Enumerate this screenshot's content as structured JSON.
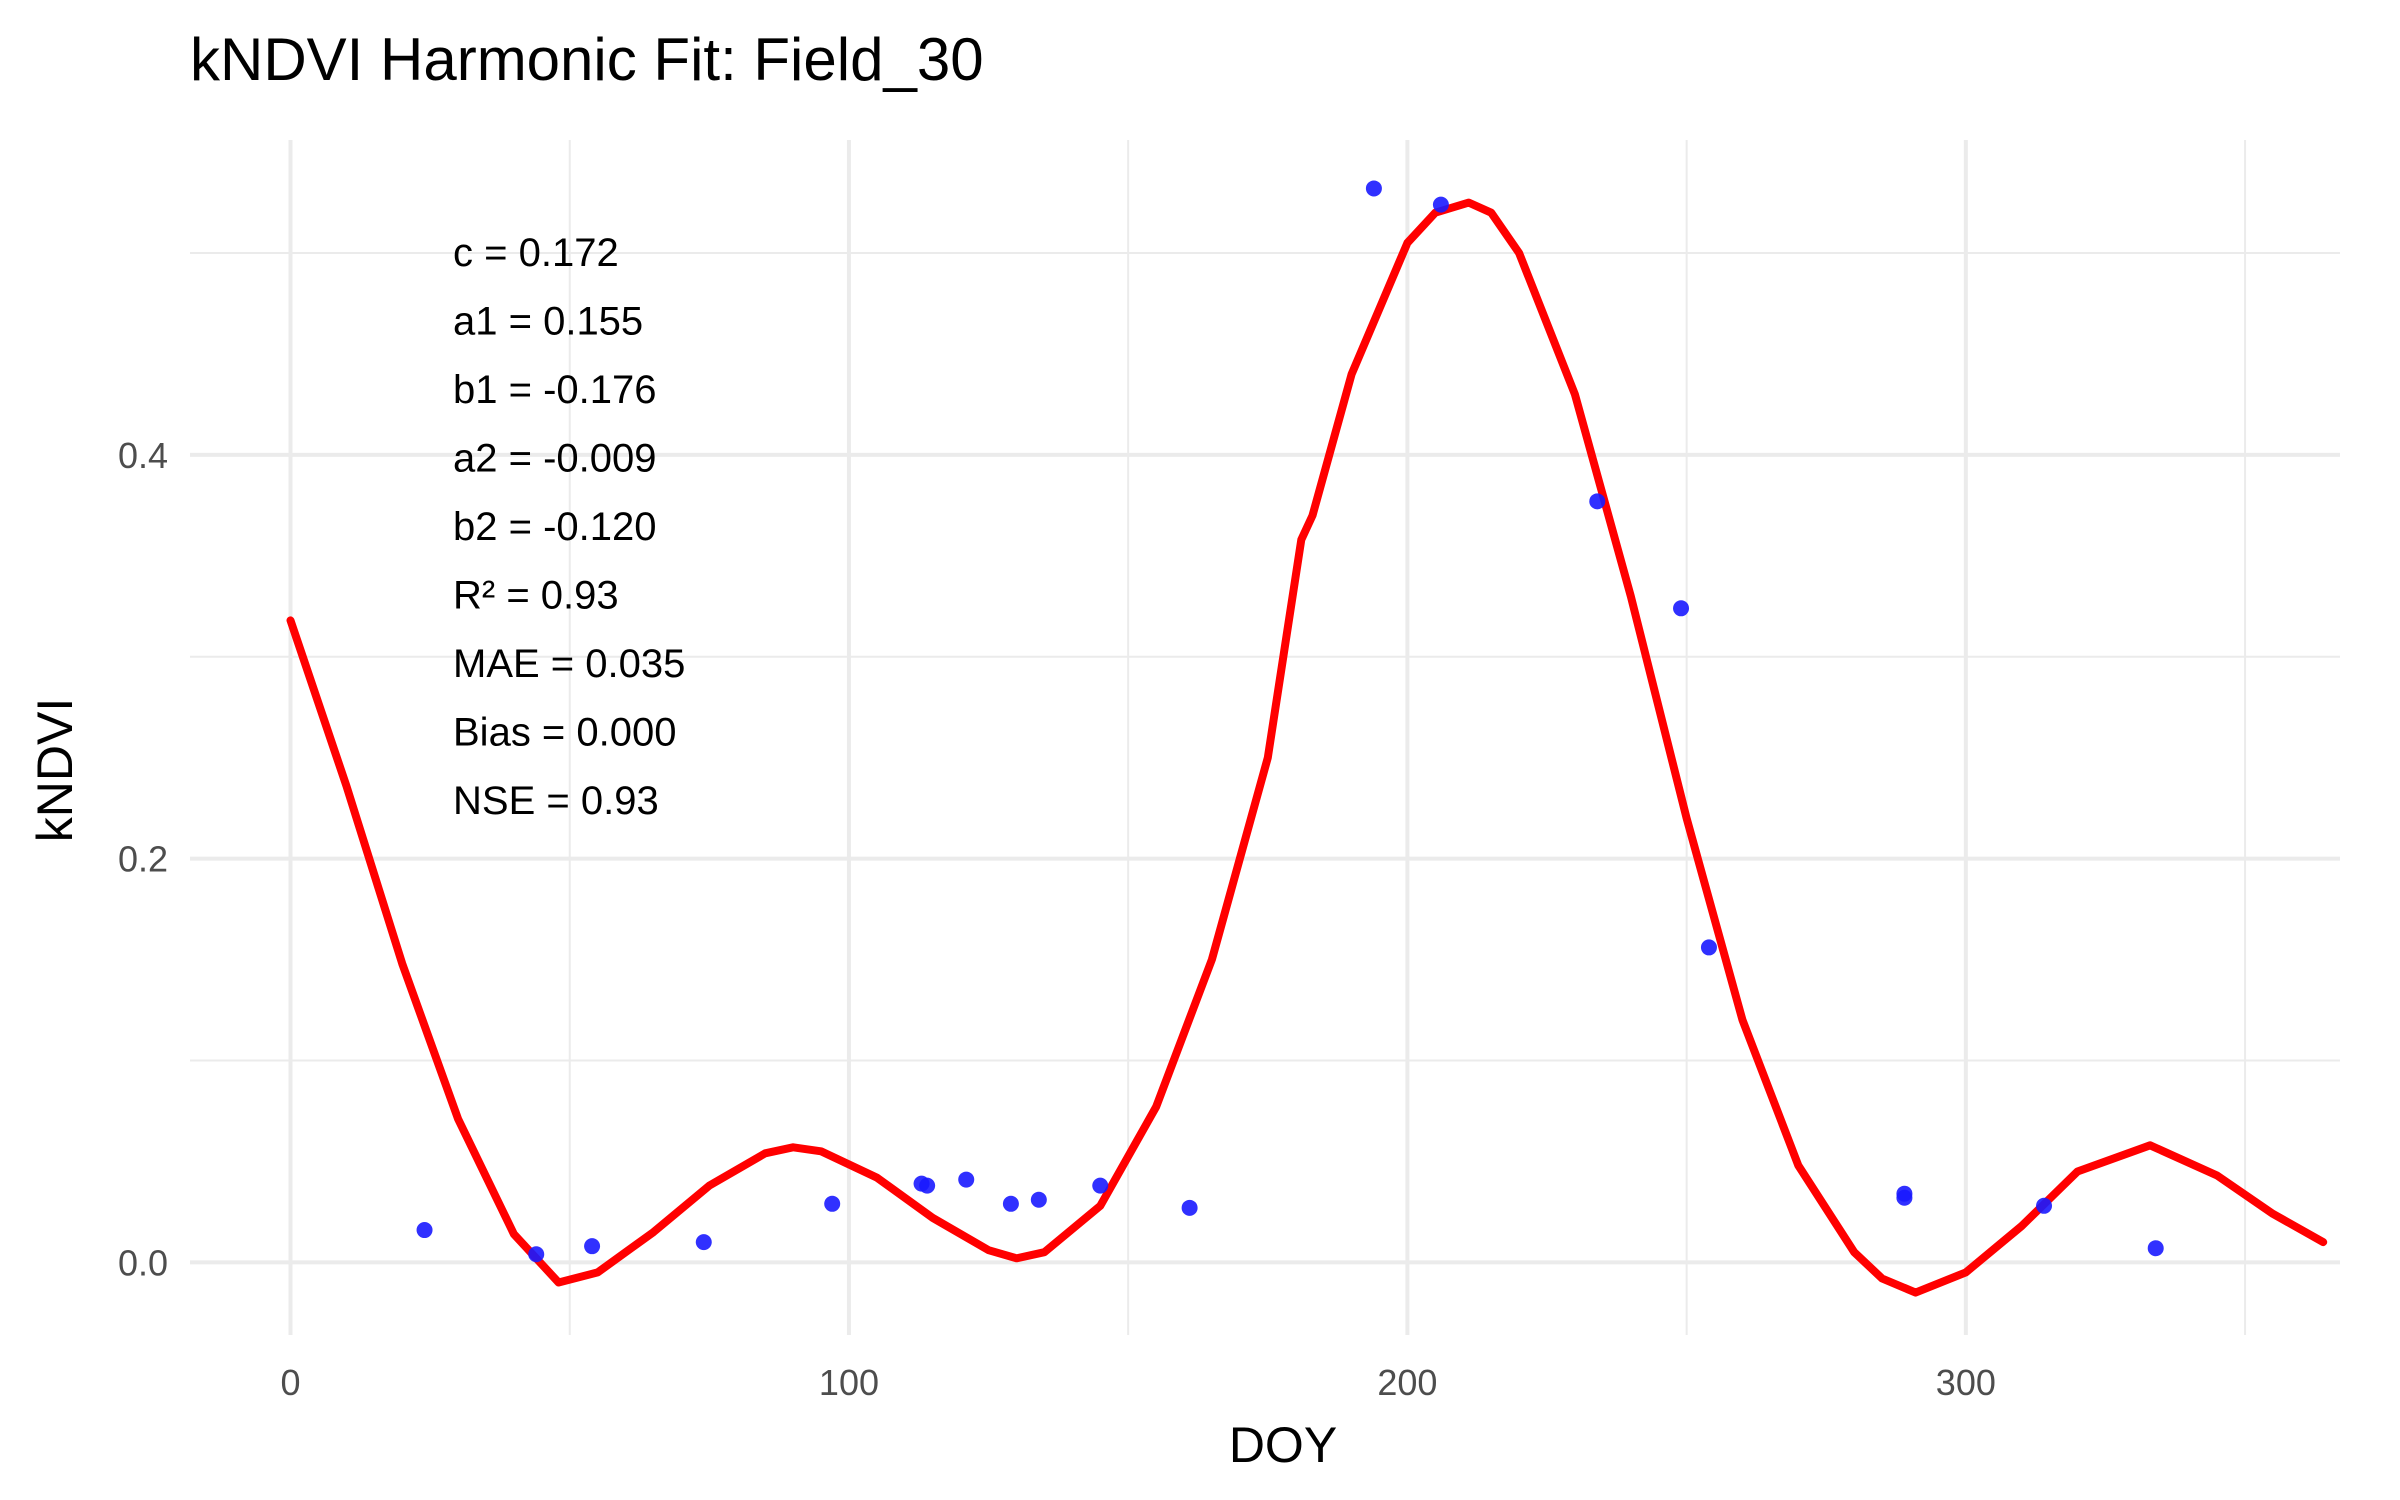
{
  "chart_data": {
    "type": "scatter",
    "title": "kNDVI Harmonic Fit: Field_30",
    "xlabel": "DOY",
    "ylabel": "kNDVI",
    "xlim": [
      -18,
      367
    ],
    "ylim": [
      -0.036,
      0.556
    ],
    "x_ticks": [
      0,
      100,
      200,
      300
    ],
    "x_tick_labels": [
      "0",
      "100",
      "200",
      "300"
    ],
    "y_ticks": [
      0.0,
      0.2,
      0.4
    ],
    "y_tick_labels": [
      "0.0",
      "0.2",
      "0.4"
    ],
    "grid": true,
    "colors": {
      "points": "#1a1aff",
      "fit": "#ff0000",
      "grid": "#ebebeb"
    },
    "series": [
      {
        "type": "scatter",
        "x": [
          24,
          44,
          54,
          74,
          97,
          113,
          114,
          121,
          129,
          134,
          145,
          161,
          194,
          206,
          234,
          249,
          254,
          289,
          289,
          314,
          334
        ],
        "y": [
          0.016,
          0.004,
          0.008,
          0.01,
          0.029,
          0.039,
          0.038,
          0.041,
          0.029,
          0.031,
          0.038,
          0.027,
          0.532,
          0.524,
          0.377,
          0.324,
          0.156,
          0.034,
          0.032,
          0.028,
          0.007
        ]
      },
      {
        "type": "line",
        "x": [
          0,
          10,
          20,
          30,
          40,
          48,
          55,
          65,
          75,
          85,
          90,
          95,
          105,
          115,
          125,
          130,
          135,
          145,
          155,
          165,
          175,
          181,
          183,
          190,
          200,
          205,
          211,
          215,
          220,
          230,
          240,
          250,
          260,
          270,
          280,
          285,
          291,
          300,
          310,
          320,
          333,
          345,
          355,
          364
        ],
        "y": [
          0.318,
          0.236,
          0.148,
          0.071,
          0.014,
          -0.01,
          -0.005,
          0.015,
          0.038,
          0.054,
          0.057,
          0.055,
          0.042,
          0.022,
          0.006,
          0.002,
          0.005,
          0.028,
          0.077,
          0.15,
          0.25,
          0.358,
          0.37,
          0.44,
          0.505,
          0.52,
          0.525,
          0.52,
          0.5,
          0.43,
          0.33,
          0.22,
          0.12,
          0.048,
          0.005,
          -0.008,
          -0.015,
          -0.005,
          0.018,
          0.045,
          0.058,
          0.043,
          0.024,
          0.01
        ]
      }
    ],
    "annotations": [
      "c = 0.172",
      "a1 = 0.155",
      "b1 = -0.176",
      "a2 = -0.009",
      "b2 = -0.120",
      "R² = 0.93",
      "MAE = 0.035",
      "Bias = 0.000",
      "NSE = 0.93"
    ]
  }
}
